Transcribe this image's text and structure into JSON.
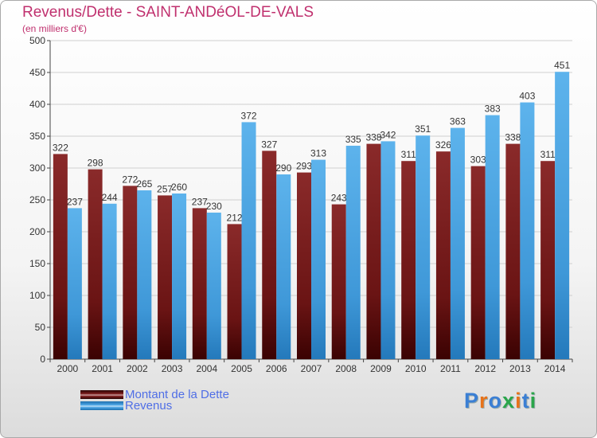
{
  "title": "Revenus/Dette - SAINT-ANDéOL-DE-VALS",
  "subtitle": "(en milliers d'€)",
  "logo": {
    "text": "Proxiti"
  },
  "colors": {
    "dette": "#7a1a1a",
    "revenus": "#4aa3e3",
    "title": "#c0306e",
    "legend_text": "#4f6ee6"
  },
  "chart_data": {
    "type": "bar",
    "categories": [
      "2000",
      "2001",
      "2002",
      "2003",
      "2004",
      "2005",
      "2006",
      "2007",
      "2008",
      "2009",
      "2010",
      "2011",
      "2012",
      "2013",
      "2014"
    ],
    "series": [
      {
        "name": "Montant de la Dette",
        "values": [
          322,
          298,
          272,
          257,
          237,
          212,
          327,
          293,
          243,
          338,
          311,
          326,
          303,
          338,
          311
        ]
      },
      {
        "name": "Revenus",
        "values": [
          237,
          244,
          265,
          260,
          230,
          372,
          290,
          313,
          335,
          342,
          351,
          363,
          383,
          403,
          451
        ]
      }
    ],
    "ylim": [
      0,
      500
    ],
    "yticks": [
      0,
      50,
      100,
      150,
      200,
      250,
      300,
      350,
      400,
      450,
      500
    ],
    "grid": true,
    "legend": "bottom-left"
  }
}
